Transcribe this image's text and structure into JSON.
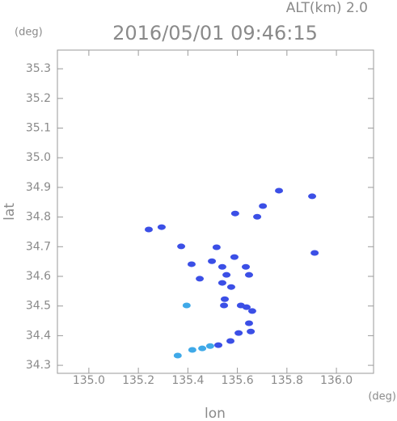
{
  "chart_data": {
    "type": "scatter",
    "title": "2016/05/01 09:46:15",
    "subtitle": "ALT(km) 2.0",
    "x_label": "lon",
    "x_unit": "(deg)",
    "y_label": "lat",
    "y_unit": "(deg)",
    "xlim": [
      134.873,
      136.15
    ],
    "ylim": [
      34.273,
      35.363
    ],
    "xticks": [
      {
        "value": 135,
        "label": "135.0"
      },
      135.2,
      135.4,
      135.6,
      135.8,
      {
        "value": 136,
        "label": "136.0"
      }
    ],
    "yticks": [
      34.3,
      34.4,
      34.5,
      34.6,
      34.7,
      34.8,
      34.9,
      {
        "value": 35,
        "label": "35.0"
      },
      35.1,
      35.2,
      35.3
    ],
    "series": [
      {
        "color": "#3b4fe6",
        "x": [
          135.242,
          135.294,
          135.373,
          135.415,
          135.516,
          135.497,
          135.539,
          135.556,
          135.575,
          135.549,
          135.546,
          135.614,
          135.637,
          135.647,
          135.634,
          135.588,
          135.591,
          135.68,
          135.703,
          135.768,
          135.902,
          135.912,
          135.605,
          135.572,
          135.523,
          135.647,
          135.66,
          135.654,
          135.539,
          135.448
        ],
        "y": [
          34.758,
          34.766,
          34.701,
          34.641,
          34.698,
          34.651,
          34.632,
          34.605,
          34.564,
          34.523,
          34.502,
          34.502,
          34.496,
          34.605,
          34.632,
          34.665,
          34.812,
          34.801,
          34.837,
          34.889,
          34.87,
          34.679,
          34.409,
          34.382,
          34.368,
          34.442,
          34.483,
          34.414,
          34.578,
          34.592
        ]
      },
      {
        "color": "#3fa9e8",
        "x": [
          135.395,
          135.359,
          135.418,
          135.458,
          135.49
        ],
        "y": [
          34.502,
          34.333,
          34.352,
          34.357,
          34.365
        ]
      }
    ]
  }
}
